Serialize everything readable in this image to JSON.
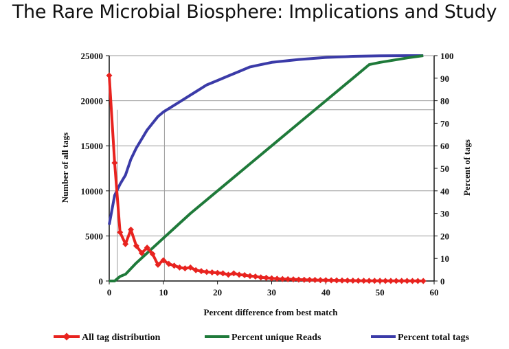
{
  "title": "The Rare Microbial Biosphere:  Implications and Study",
  "chart_data": {
    "type": "line",
    "xlabel": "Percent difference from best match",
    "ylabel_left": "Number of all tags",
    "ylabel_right": "Percent of tags",
    "xlim": [
      0,
      60
    ],
    "ylim_left": [
      0,
      25000
    ],
    "ylim_right": [
      0,
      100
    ],
    "x_ticks": [
      0,
      10,
      20,
      30,
      40,
      50,
      60
    ],
    "y_left_ticks": [
      0,
      5000,
      10000,
      15000,
      20000,
      25000
    ],
    "y_right_ticks": [
      0,
      10,
      20,
      30,
      40,
      50,
      60,
      70,
      80,
      90,
      100
    ],
    "grid": "horizontal",
    "reference_lines": {
      "x": [
        1.5,
        10.2
      ],
      "y_right": [
        76
      ]
    },
    "legend_position": "bottom",
    "series": [
      {
        "name": "All tag distribution",
        "axis": "left",
        "color": "#e8231f",
        "marker": "diamond",
        "x": [
          0,
          1,
          2,
          3,
          4,
          5,
          6,
          7,
          8,
          9,
          10,
          11,
          12,
          13,
          14,
          15,
          16,
          17,
          18,
          19,
          20,
          21,
          22,
          23,
          24,
          25,
          26,
          27,
          28,
          29,
          30,
          31,
          32,
          33,
          34,
          35,
          36,
          37,
          38,
          39,
          40,
          41,
          42,
          43,
          44,
          45,
          46,
          47,
          48,
          49,
          50,
          51,
          52,
          53,
          54,
          55,
          56,
          57,
          58
        ],
        "values": [
          22800,
          13100,
          5400,
          4100,
          5700,
          3900,
          3100,
          3700,
          3000,
          1800,
          2300,
          1900,
          1700,
          1500,
          1400,
          1500,
          1200,
          1100,
          1000,
          950,
          900,
          850,
          700,
          850,
          700,
          650,
          550,
          500,
          400,
          350,
          300,
          250,
          220,
          200,
          180,
          150,
          130,
          120,
          110,
          100,
          90,
          80,
          70,
          60,
          50,
          40,
          30,
          25,
          20,
          18,
          15,
          12,
          10,
          8,
          6,
          5,
          4,
          3,
          2
        ]
      },
      {
        "name": "Percent unique Reads",
        "axis": "right",
        "color": "#1f7a3a",
        "x": [
          0,
          1,
          1.5,
          2,
          3,
          5,
          10,
          15,
          20,
          25,
          30,
          35,
          40,
          45,
          48,
          50,
          55,
          58
        ],
        "values": [
          0,
          0,
          1,
          2,
          3,
          8,
          19,
          30,
          40,
          50,
          60,
          70,
          80,
          90,
          96,
          97,
          99,
          100
        ]
      },
      {
        "name": "Percent total tags",
        "axis": "right",
        "color": "#3b3ba8",
        "x": [
          0,
          1,
          2,
          3,
          4,
          5,
          6,
          7,
          8,
          9,
          10,
          12,
          14,
          16,
          18,
          20,
          22,
          24,
          26,
          28,
          30,
          35,
          40,
          45,
          50,
          55,
          58
        ],
        "values": [
          25,
          38,
          43,
          47,
          54,
          59,
          63,
          67,
          70,
          73,
          75,
          78,
          81,
          84,
          87,
          89,
          91,
          93,
          95,
          96,
          97,
          98.3,
          99.2,
          99.7,
          99.9,
          100,
          100
        ]
      }
    ]
  }
}
